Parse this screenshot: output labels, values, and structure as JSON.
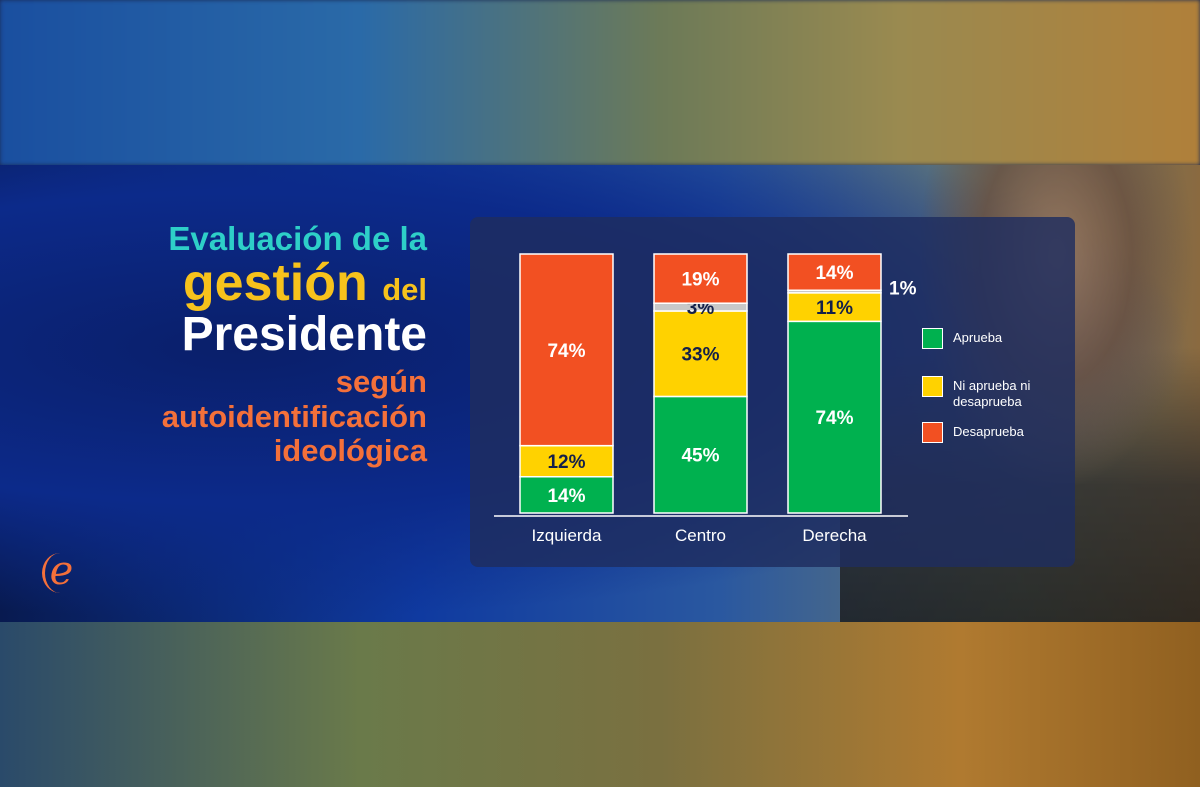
{
  "title": {
    "line1": "Evaluación de la",
    "line2a": "gestión",
    "line2b": "del",
    "line3": "Presidente",
    "line4": "según",
    "line5": "autoidentificación",
    "line6": "ideológica"
  },
  "logo": "e",
  "chart_data": {
    "type": "bar",
    "stacked": true,
    "categories": [
      "Izquierda",
      "Centro",
      "Derecha"
    ],
    "series": [
      {
        "name": "Aprueba",
        "color": "#00b14f",
        "values": [
          14,
          45,
          74
        ],
        "labels": [
          "14%",
          "45%",
          "74%"
        ],
        "text_color": "#ffffff"
      },
      {
        "name": "Ni aprueba ni desaprueba",
        "color": "#ffd200",
        "values": [
          12,
          33,
          11
        ],
        "labels": [
          "12%",
          "33%",
          "11%"
        ],
        "text_color": "#14204a"
      },
      {
        "name": "",
        "color": "#c8c8c8",
        "values": [
          0,
          3,
          1
        ],
        "labels": [
          "",
          "3%",
          "1%"
        ],
        "text_color": "#14204a",
        "legend": false
      },
      {
        "name": "Desaprueba",
        "color": "#f25022",
        "values": [
          74,
          19,
          14
        ],
        "labels": [
          "74%",
          "19%",
          "14%"
        ],
        "text_color": "#ffffff"
      }
    ],
    "ylim": [
      0,
      100
    ],
    "legend": "right",
    "grid": false
  }
}
